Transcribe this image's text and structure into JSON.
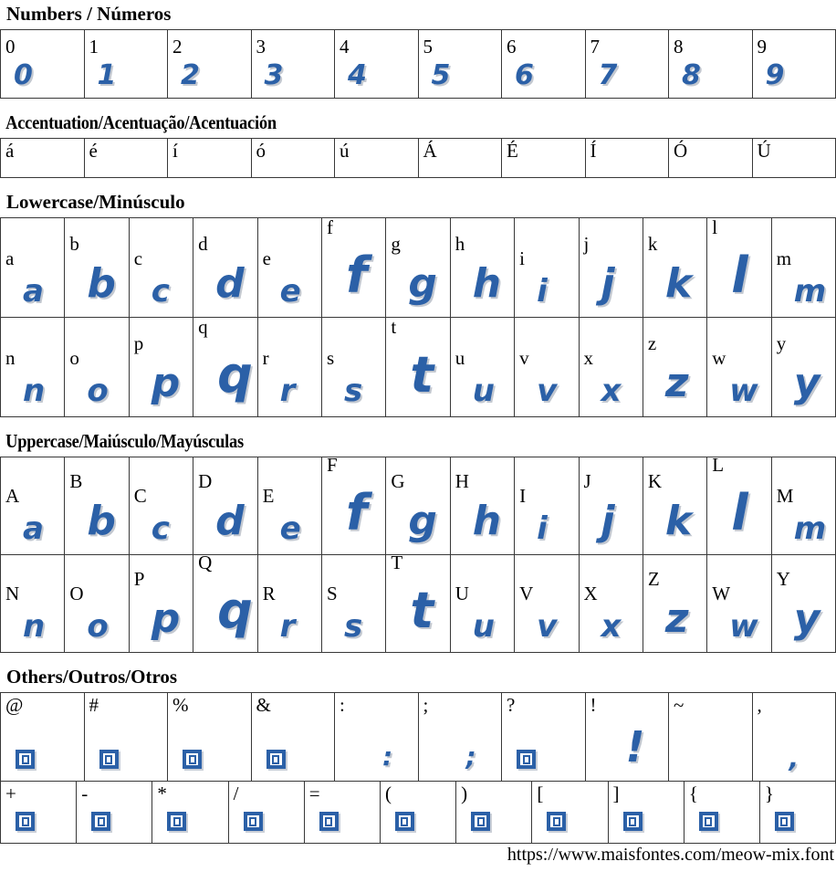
{
  "accent_color": "#2b60a7",
  "border_color": "#383838",
  "sections": [
    {
      "id": "numbers",
      "title": "Numbers / Números",
      "rows": [
        [
          {
            "label": "0",
            "glyph": "0"
          },
          {
            "label": "1",
            "glyph": "1"
          },
          {
            "label": "2",
            "glyph": "2"
          },
          {
            "label": "3",
            "glyph": "3"
          },
          {
            "label": "4",
            "glyph": "4"
          },
          {
            "label": "5",
            "glyph": "5"
          },
          {
            "label": "6",
            "glyph": "6"
          },
          {
            "label": "7",
            "glyph": "7"
          },
          {
            "label": "8",
            "glyph": "8"
          },
          {
            "label": "9",
            "glyph": "9"
          }
        ]
      ]
    },
    {
      "id": "accent",
      "title": "Accentuation/Acentuação/Acentuación",
      "rows": [
        [
          {
            "label": "á"
          },
          {
            "label": "é"
          },
          {
            "label": "í"
          },
          {
            "label": "ó"
          },
          {
            "label": "ú"
          },
          {
            "label": "Á"
          },
          {
            "label": "É"
          },
          {
            "label": "Í"
          },
          {
            "label": "Ó"
          },
          {
            "label": "Ú"
          }
        ]
      ]
    },
    {
      "id": "lowercase",
      "title": "Lowercase/Minúsculo",
      "rows": [
        [
          {
            "label": "a",
            "glyph": "a"
          },
          {
            "label": "b",
            "glyph": "b"
          },
          {
            "label": "c",
            "glyph": "c"
          },
          {
            "label": "d",
            "glyph": "d"
          },
          {
            "label": "e",
            "glyph": "e"
          },
          {
            "label": "f",
            "glyph": "f"
          },
          {
            "label": "g",
            "glyph": "g"
          },
          {
            "label": "h",
            "glyph": "h"
          },
          {
            "label": "i",
            "glyph": "i"
          },
          {
            "label": "j",
            "glyph": "j"
          },
          {
            "label": "k",
            "glyph": "k"
          },
          {
            "label": "l",
            "glyph": "l"
          },
          {
            "label": "m",
            "glyph": "m"
          }
        ],
        [
          {
            "label": "n",
            "glyph": "n"
          },
          {
            "label": "o",
            "glyph": "o"
          },
          {
            "label": "p",
            "glyph": "p"
          },
          {
            "label": "q",
            "glyph": "q"
          },
          {
            "label": "r",
            "glyph": "r"
          },
          {
            "label": "s",
            "glyph": "s"
          },
          {
            "label": "t",
            "glyph": "t"
          },
          {
            "label": "u",
            "glyph": "u"
          },
          {
            "label": "v",
            "glyph": "v"
          },
          {
            "label": "x",
            "glyph": "x"
          },
          {
            "label": "z",
            "glyph": "z"
          },
          {
            "label": "w",
            "glyph": "w"
          },
          {
            "label": "y",
            "glyph": "y"
          }
        ]
      ]
    },
    {
      "id": "uppercase",
      "title": "Uppercase/Maiúsculo/Mayúsculas",
      "rows": [
        [
          {
            "label": "A",
            "glyph": "a"
          },
          {
            "label": "B",
            "glyph": "b"
          },
          {
            "label": "C",
            "glyph": "c"
          },
          {
            "label": "D",
            "glyph": "d"
          },
          {
            "label": "E",
            "glyph": "e"
          },
          {
            "label": "F",
            "glyph": "f"
          },
          {
            "label": "G",
            "glyph": "g"
          },
          {
            "label": "H",
            "glyph": "h"
          },
          {
            "label": "I",
            "glyph": "i"
          },
          {
            "label": "J",
            "glyph": "j"
          },
          {
            "label": "K",
            "glyph": "k"
          },
          {
            "label": "L",
            "glyph": "l"
          },
          {
            "label": "M",
            "glyph": "m"
          }
        ],
        [
          {
            "label": "N",
            "glyph": "n"
          },
          {
            "label": "O",
            "glyph": "o"
          },
          {
            "label": "P",
            "glyph": "p"
          },
          {
            "label": "Q",
            "glyph": "q"
          },
          {
            "label": "R",
            "glyph": "r"
          },
          {
            "label": "S",
            "glyph": "s"
          },
          {
            "label": "T",
            "glyph": "t"
          },
          {
            "label": "U",
            "glyph": "u"
          },
          {
            "label": "V",
            "glyph": "v"
          },
          {
            "label": "X",
            "glyph": "x"
          },
          {
            "label": "Z",
            "glyph": "z"
          },
          {
            "label": "W",
            "glyph": "w"
          },
          {
            "label": "Y",
            "glyph": "y"
          }
        ]
      ]
    },
    {
      "id": "others",
      "title": "Others/Outros/Otros",
      "rows": [
        [
          {
            "label": "@",
            "notdef": true
          },
          {
            "label": "#",
            "notdef": true
          },
          {
            "label": "%",
            "notdef": true
          },
          {
            "label": "&",
            "notdef": true
          },
          {
            "label": ":",
            "glyph": ":"
          },
          {
            "label": ";",
            "glyph": ";"
          },
          {
            "label": "?",
            "notdef": true
          },
          {
            "label": "!",
            "glyph": "!"
          },
          {
            "label": "~"
          },
          {
            "label": ",",
            "glyph": ","
          }
        ],
        [
          {
            "label": "+",
            "notdef": true
          },
          {
            "label": "-",
            "notdef": true
          },
          {
            "label": "*",
            "notdef": true
          },
          {
            "label": "/",
            "notdef": true
          },
          {
            "label": "=",
            "notdef": true
          },
          {
            "label": "(",
            "notdef": true
          },
          {
            "label": ")",
            "notdef": true
          },
          {
            "label": "[",
            "notdef": true
          },
          {
            "label": "]",
            "notdef": true
          },
          {
            "label": "{",
            "notdef": true
          },
          {
            "label": "}",
            "notdef": true
          }
        ]
      ]
    }
  ],
  "footer": {
    "url": "https://www.maisfontes.com/meow-mix.font"
  }
}
